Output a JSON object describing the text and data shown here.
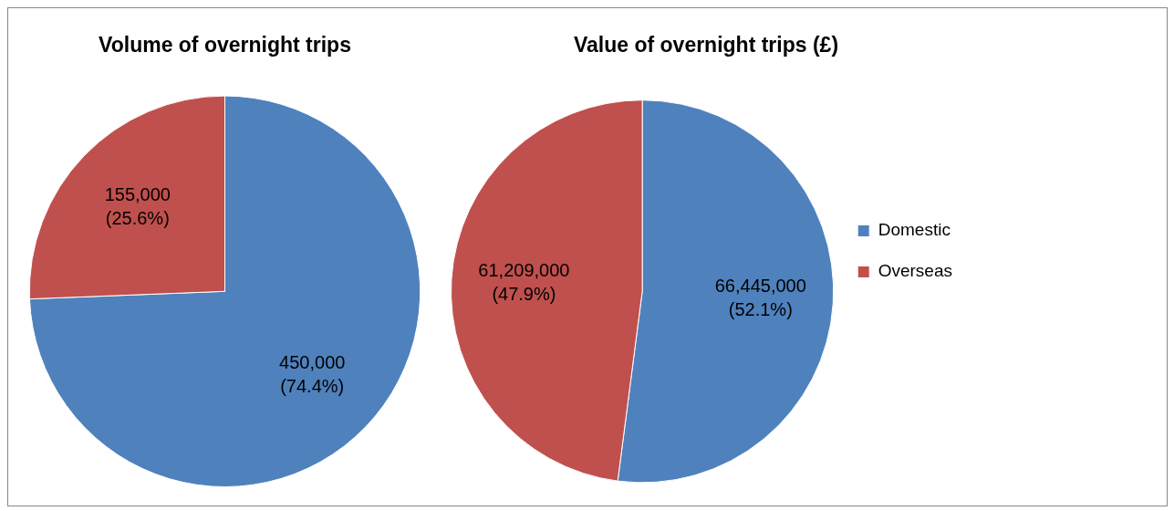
{
  "chart_data": [
    {
      "type": "pie",
      "title": "Volume of overnight trips",
      "categories": [
        null,
        null
      ],
      "values": [
        450000,
        155000
      ],
      "colors": [
        "#4f81bd",
        "#c0504d"
      ],
      "value_labels": [
        "450,000\n(74.4%)",
        "155,000\n(25.6%)"
      ]
    },
    {
      "type": "pie",
      "title": "Value of overnight trips (£)",
      "categories": [
        "Domestic",
        "Overseas"
      ],
      "values": [
        66445000,
        61209000
      ],
      "colors": [
        "#4f81bd",
        "#c0504d"
      ],
      "value_labels": [
        "66,445,000\n(52.1%)",
        "61,209,000\n(47.9%)"
      ],
      "legend": "right"
    }
  ]
}
